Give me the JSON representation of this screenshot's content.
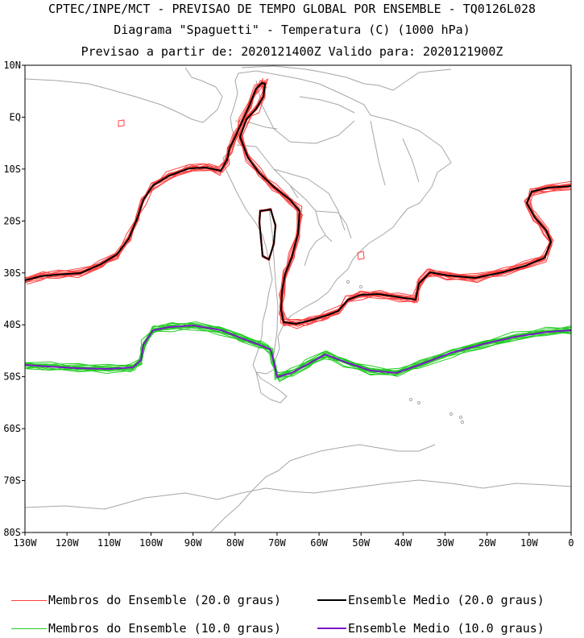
{
  "titles": {
    "line1": "CPTEC/INPE/MCT - PREVISAO DE TEMPO GLOBAL POR ENSEMBLE - TQ0126L028",
    "line2": "Diagrama \"Spaguetti\" - Temperatura (C) (1000 hPa)",
    "line3": "Previsao a partir de: 2020121400Z  Valido para: 2020121900Z"
  },
  "map": {
    "lat_labels": [
      "10N",
      "EQ",
      "10S",
      "20S",
      "30S",
      "40S",
      "50S",
      "60S",
      "70S",
      "80S"
    ],
    "lon_labels": [
      "130W",
      "120W",
      "110W",
      "100W",
      "90W",
      "80W",
      "70W",
      "60W",
      "50W",
      "40W",
      "30W",
      "20W",
      "10W",
      "0"
    ],
    "extent": {
      "lon": [
        -130,
        0
      ],
      "lat": [
        -80,
        10
      ]
    },
    "colors": {
      "coast": "#a6a6a6",
      "member_20": "#ff4040",
      "mean_20": "#000000",
      "member_10": "#22cc22",
      "mean_10": "#7a18c8"
    }
  },
  "legend": {
    "members_20": "Membros do Ensemble (20.0 graus)",
    "mean_20": "Ensemble Medio (20.0 graus)",
    "members_10": "Membros do Ensemble (10.0 graus)",
    "mean_10": "Ensemble Medio (10.0 graus)"
  }
}
